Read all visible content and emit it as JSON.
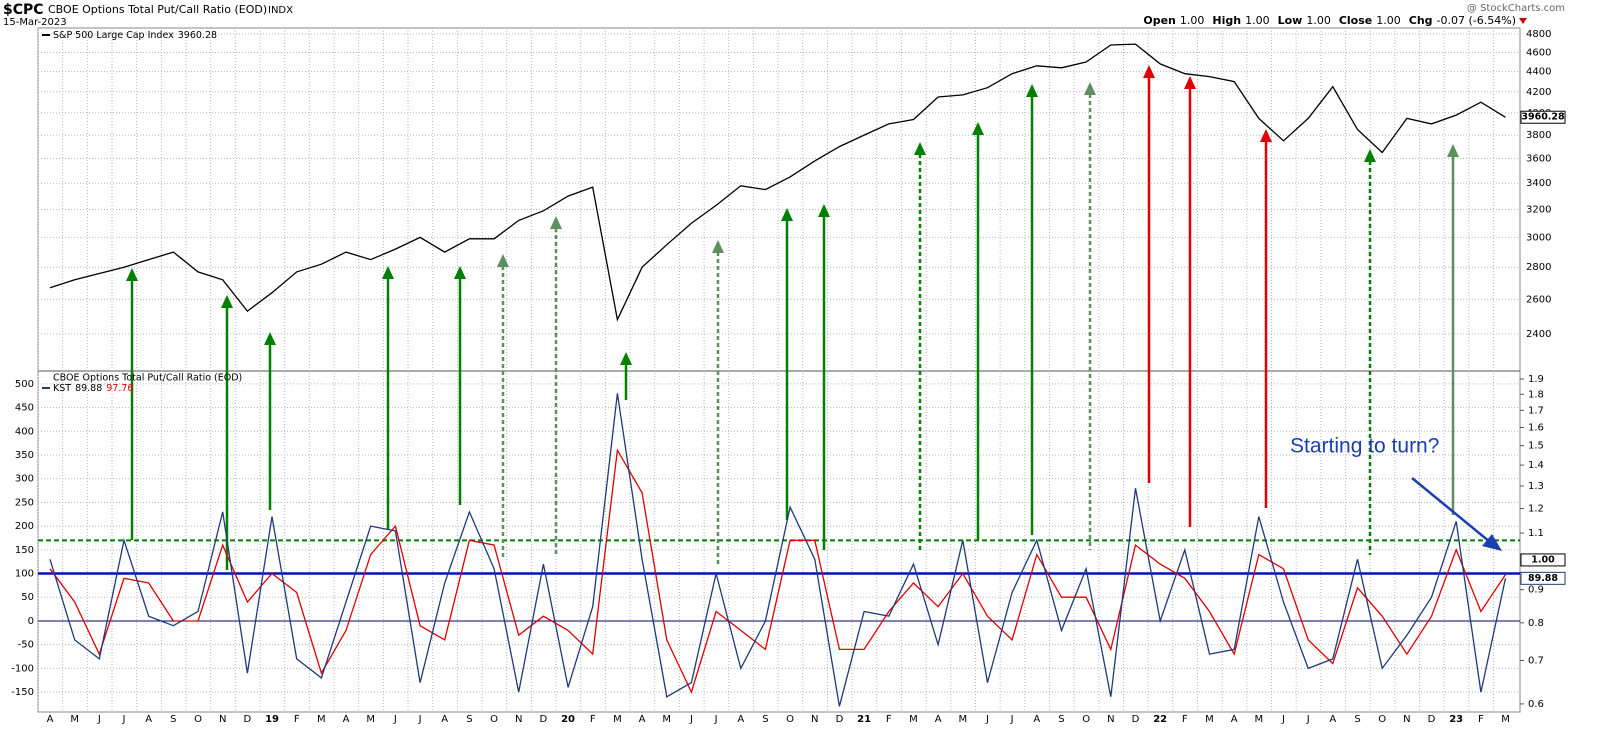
{
  "header": {
    "symbol": "$CPC",
    "name": "CBOE Options Total Put/Call Ratio (EOD)",
    "exchange": "INDX",
    "date": "15-Mar-2023",
    "source": "@ StockCharts.com",
    "quote": [
      {
        "label": "Open",
        "value": "1.00"
      },
      {
        "label": "High",
        "value": "1.00"
      },
      {
        "label": "Low",
        "value": "1.00"
      },
      {
        "label": "Close",
        "value": "1.00"
      },
      {
        "label": "Chg",
        "value": "-0.07 (-6.54%)"
      }
    ]
  },
  "chart_data": [
    {
      "type": "line",
      "log_scale": true,
      "grid": true,
      "x": [
        "2018-04",
        "2018-05",
        "2018-06",
        "2018-07",
        "2018-08",
        "2018-09",
        "2018-10",
        "2018-11",
        "2018-12",
        "2019-01",
        "2019-02",
        "2019-03",
        "2019-04",
        "2019-05",
        "2019-06",
        "2019-07",
        "2019-08",
        "2019-09",
        "2019-10",
        "2019-11",
        "2019-12",
        "2020-01",
        "2020-02",
        "2020-03",
        "2020-04",
        "2020-05",
        "2020-06",
        "2020-07",
        "2020-08",
        "2020-09",
        "2020-10",
        "2020-11",
        "2020-12",
        "2021-01",
        "2021-02",
        "2021-03",
        "2021-04",
        "2021-05",
        "2021-06",
        "2021-07",
        "2021-08",
        "2021-09",
        "2021-10",
        "2021-11",
        "2021-12",
        "2022-01",
        "2022-02",
        "2022-03",
        "2022-04",
        "2022-05",
        "2022-06",
        "2022-07",
        "2022-08",
        "2022-09",
        "2022-10",
        "2022-11",
        "2022-12",
        "2023-01",
        "2023-02",
        "2023-03"
      ],
      "series": [
        {
          "name": "S&P 500 Large Cap Index",
          "color": "#000000",
          "last_value": 3960.28,
          "values": [
            2670,
            2720,
            2760,
            2800,
            2850,
            2900,
            2770,
            2720,
            2530,
            2640,
            2770,
            2820,
            2900,
            2850,
            2920,
            3000,
            2900,
            2990,
            2990,
            3120,
            3190,
            3300,
            3370,
            2480,
            2800,
            2950,
            3100,
            3230,
            3380,
            3350,
            3450,
            3580,
            3700,
            3800,
            3900,
            3940,
            4150,
            4170,
            4240,
            4380,
            4460,
            4440,
            4500,
            4680,
            4690,
            4480,
            4380,
            4350,
            4300,
            3950,
            3750,
            3950,
            4250,
            3850,
            3650,
            3950,
            3900,
            3980,
            4100,
            3960
          ]
        }
      ],
      "ylim": [
        2208,
        4845
      ],
      "yticks": [
        2400,
        2600,
        2800,
        3000,
        3200,
        3400,
        3600,
        3800,
        4000,
        4200,
        4400,
        4600,
        4800
      ]
    },
    {
      "type": "line",
      "title": "CBOE Options Total Put/Call Ratio (EOD)",
      "grid": true,
      "annotation": "Starting to turn?",
      "x": [
        "2018-04",
        "2018-05",
        "2018-06",
        "2018-07",
        "2018-08",
        "2018-09",
        "2018-10",
        "2018-11",
        "2018-12",
        "2019-01",
        "2019-02",
        "2019-03",
        "2019-04",
        "2019-05",
        "2019-06",
        "2019-07",
        "2019-08",
        "2019-09",
        "2019-10",
        "2019-11",
        "2019-12",
        "2020-01",
        "2020-02",
        "2020-03",
        "2020-04",
        "2020-05",
        "2020-06",
        "2020-07",
        "2020-08",
        "2020-09",
        "2020-10",
        "2020-11",
        "2020-12",
        "2021-01",
        "2021-02",
        "2021-03",
        "2021-04",
        "2021-05",
        "2021-06",
        "2021-07",
        "2021-08",
        "2021-09",
        "2021-10",
        "2021-11",
        "2021-12",
        "2022-01",
        "2022-02",
        "2022-03",
        "2022-04",
        "2022-05",
        "2022-06",
        "2022-07",
        "2022-08",
        "2022-09",
        "2022-10",
        "2022-11",
        "2022-12",
        "2023-01",
        "2023-02",
        "2023-03"
      ],
      "series": [
        {
          "name": "KST",
          "color": "#1f3a7a",
          "last_value": 89.88,
          "values": [
            130,
            -40,
            -80,
            170,
            10,
            -10,
            20,
            230,
            -110,
            220,
            -80,
            -120,
            40,
            200,
            190,
            -130,
            80,
            230,
            110,
            -150,
            120,
            -140,
            30,
            480,
            130,
            -160,
            -130,
            100,
            -100,
            0,
            240,
            130,
            -180,
            20,
            10,
            120,
            -50,
            170,
            -130,
            60,
            170,
            -20,
            110,
            -160,
            280,
            0,
            150,
            -70,
            -60,
            220,
            40,
            -100,
            -80,
            130,
            -100,
            -30,
            50,
            210,
            -150,
            89.88
          ]
        },
        {
          "color": "#e00000",
          "last_value": 97.76,
          "values": [
            110,
            40,
            -70,
            90,
            80,
            0,
            0,
            160,
            40,
            100,
            60,
            -110,
            -20,
            140,
            200,
            -10,
            -40,
            170,
            160,
            -30,
            10,
            -20,
            -70,
            360,
            270,
            -40,
            -150,
            20,
            -20,
            -60,
            170,
            170,
            -60,
            -60,
            20,
            80,
            30,
            100,
            10,
            -40,
            140,
            50,
            50,
            -60,
            160,
            120,
            90,
            20,
            -70,
            140,
            110,
            -40,
            -90,
            70,
            10,
            -70,
            10,
            150,
            20,
            97.76
          ]
        }
      ],
      "ylim": [
        -192,
        525
      ],
      "yticks": [
        -150,
        -100,
        -50,
        0,
        50,
        100,
        150,
        200,
        250,
        300,
        350,
        400,
        450,
        500
      ],
      "y2lim": [
        0.583,
        1.948
      ],
      "y2_log": true,
      "y2ticks": [
        0.6,
        0.7,
        0.8,
        0.9,
        1.1,
        1.2,
        1.3,
        1.4,
        1.5,
        1.6,
        1.7,
        1.8,
        1.9
      ],
      "y2_last": {
        "value": 1,
        "label": "1.00"
      },
      "reference_lines": [
        {
          "value": 0,
          "color": "#000066",
          "dashed": false
        },
        {
          "value": 100,
          "color": "#0010c8",
          "dashed": false
        },
        {
          "value": 170,
          "color": "#008000",
          "dashed": true
        }
      ],
      "xticks": [
        {
          "value": "2018-04",
          "label": "A"
        },
        {
          "value": "2018-05",
          "label": "M"
        },
        {
          "value": "2018-06",
          "label": "J"
        },
        {
          "value": "2018-07",
          "label": "J"
        },
        {
          "value": "2018-08",
          "label": "A"
        },
        {
          "value": "2018-09",
          "label": "S"
        },
        {
          "value": "2018-10",
          "label": "O"
        },
        {
          "value": "2018-11",
          "label": "N"
        },
        {
          "value": "2018-12",
          "label": "D"
        },
        {
          "value": "2019-01",
          "label": "19"
        },
        {
          "value": "2019-02",
          "label": "F"
        },
        {
          "value": "2019-03",
          "label": "M"
        },
        {
          "value": "2019-04",
          "label": "A"
        },
        {
          "value": "2019-05",
          "label": "M"
        },
        {
          "value": "2019-06",
          "label": "J"
        },
        {
          "value": "2019-07",
          "label": "J"
        },
        {
          "value": "2019-08",
          "label": "A"
        },
        {
          "value": "2019-09",
          "label": "S"
        },
        {
          "value": "2019-10",
          "label": "O"
        },
        {
          "value": "2019-11",
          "label": "N"
        },
        {
          "value": "2019-12",
          "label": "D"
        },
        {
          "value": "2020-01",
          "label": "20"
        },
        {
          "value": "2020-02",
          "label": "F"
        },
        {
          "value": "2020-03",
          "label": "M"
        },
        {
          "value": "2020-04",
          "label": "A"
        },
        {
          "value": "2020-05",
          "label": "M"
        },
        {
          "value": "2020-06",
          "label": "J"
        },
        {
          "value": "2020-07",
          "label": "J"
        },
        {
          "value": "2020-08",
          "label": "A"
        },
        {
          "value": "2020-09",
          "label": "S"
        },
        {
          "value": "2020-10",
          "label": "O"
        },
        {
          "value": "2020-11",
          "label": "N"
        },
        {
          "value": "2020-12",
          "label": "D"
        },
        {
          "value": "2021-01",
          "label": "21"
        },
        {
          "value": "2021-02",
          "label": "F"
        },
        {
          "value": "2021-03",
          "label": "M"
        },
        {
          "value": "2021-04",
          "label": "A"
        },
        {
          "value": "2021-05",
          "label": "M"
        },
        {
          "value": "2021-06",
          "label": "J"
        },
        {
          "value": "2021-07",
          "label": "J"
        },
        {
          "value": "2021-08",
          "label": "A"
        },
        {
          "value": "2021-09",
          "label": "S"
        },
        {
          "value": "2021-10",
          "label": "O"
        },
        {
          "value": "2021-11",
          "label": "N"
        },
        {
          "value": "2021-12",
          "label": "D"
        },
        {
          "value": "2022-01",
          "label": "22"
        },
        {
          "value": "2022-02",
          "label": "F"
        },
        {
          "value": "2022-03",
          "label": "M"
        },
        {
          "value": "2022-04",
          "label": "A"
        },
        {
          "value": "2022-05",
          "label": "M"
        },
        {
          "value": "2022-06",
          "label": "J"
        },
        {
          "value": "2022-07",
          "label": "J"
        },
        {
          "value": "2022-08",
          "label": "A"
        },
        {
          "value": "2022-09",
          "label": "S"
        },
        {
          "value": "2022-10",
          "label": "O"
        },
        {
          "value": "2022-11",
          "label": "N"
        },
        {
          "value": "2022-12",
          "label": "D"
        },
        {
          "value": "2023-01",
          "label": "23"
        },
        {
          "value": "2023-02",
          "label": "F"
        },
        {
          "value": "2023-03",
          "label": "M"
        }
      ]
    }
  ]
}
